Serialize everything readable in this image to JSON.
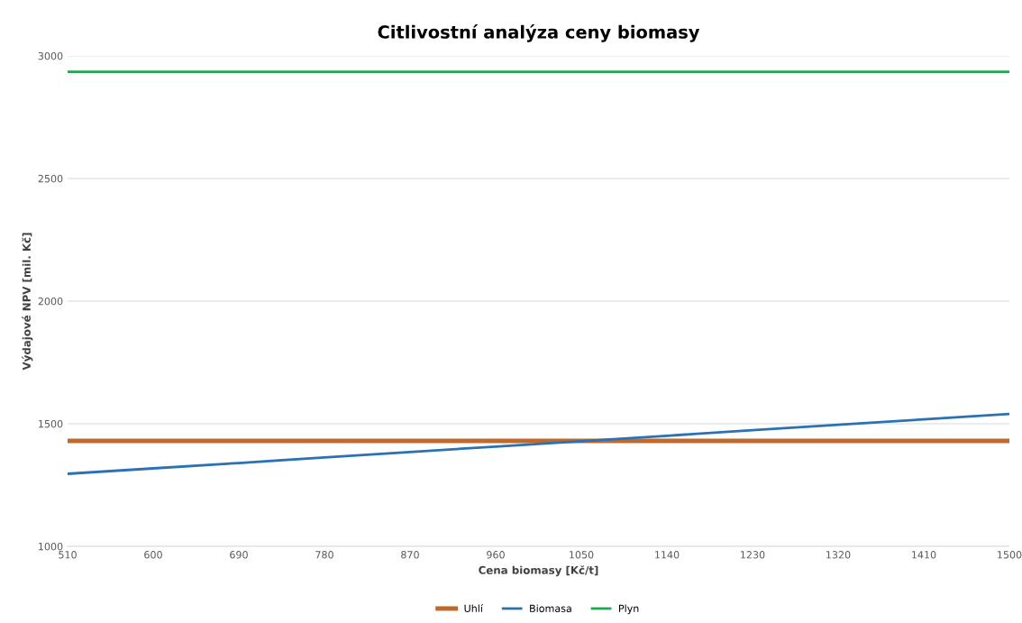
{
  "chart_data": {
    "type": "line",
    "title": "Citlivostní analýza ceny biomasy",
    "xlabel": "Cena biomasy [Kč/t]",
    "ylabel": "Výdajové NPV [mil. Kč]",
    "x": [
      510,
      600,
      690,
      780,
      870,
      960,
      1050,
      1140,
      1230,
      1320,
      1410,
      1500
    ],
    "series": [
      {
        "name": "Uhlí",
        "color": "#c0692c",
        "values": [
          1430,
          1430,
          1430,
          1430,
          1430,
          1430,
          1430,
          1430,
          1430,
          1430,
          1430,
          1430
        ]
      },
      {
        "name": "Biomasa",
        "color": "#2a72b5",
        "values": [
          1296,
          1318,
          1340,
          1363,
          1385,
          1407,
          1429,
          1451,
          1474,
          1496,
          1518,
          1540
        ]
      },
      {
        "name": "Plyn",
        "color": "#22a652",
        "values": [
          2935,
          2935,
          2935,
          2935,
          2935,
          2935,
          2935,
          2935,
          2935,
          2935,
          2935,
          2935
        ]
      }
    ],
    "xlim": [
      510,
      1500
    ],
    "xticks": [
      510,
      600,
      690,
      780,
      870,
      960,
      1050,
      1140,
      1230,
      1320,
      1410,
      1500
    ],
    "ylim": [
      1000,
      3000
    ],
    "yticks": [
      1000,
      1500,
      2000,
      2500,
      3000
    ],
    "grid": "y",
    "legend": "bottom",
    "marker": "none",
    "line_style": "solid"
  }
}
